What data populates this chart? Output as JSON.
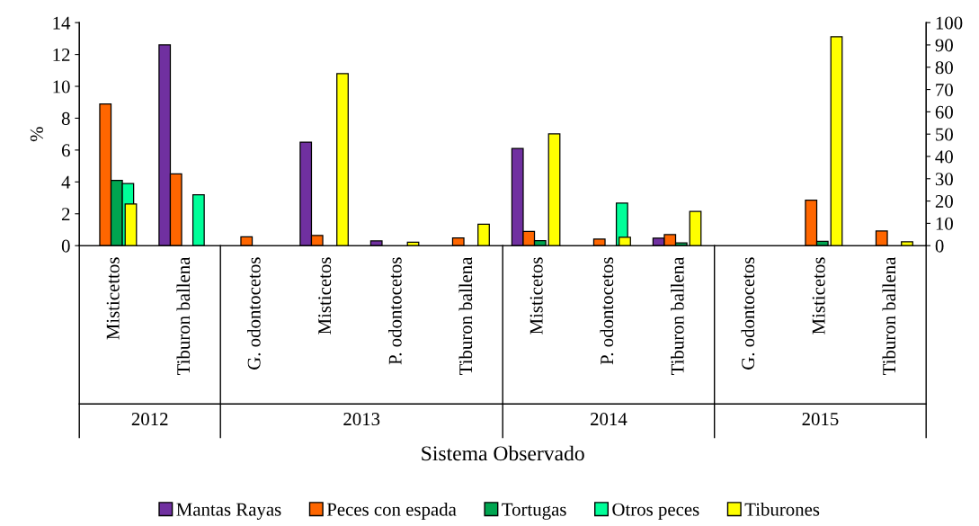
{
  "chart_data": {
    "type": "bar",
    "xlabel": "Sistema Observado",
    "ylabel": "%",
    "categories": [
      "Misticettos",
      "Tiburon ballena",
      "G. odontocetos",
      "Misticetos",
      "P. odontocetos",
      "Tiburon ballena",
      "Misticetos",
      "P. odontocetos",
      "Tiburon ballena",
      "G. odontocetos",
      "Misticetos",
      "Tiburon ballena"
    ],
    "annotations": [
      "2012",
      "2013",
      "2014",
      "2015"
    ],
    "series": [
      {
        "name": "Mantas Rayas",
        "color": "#7030a0",
        "values": [
          null,
          12.6,
          null,
          6.5,
          0.3,
          null,
          6.1,
          null,
          0.47,
          null,
          null,
          null
        ]
      },
      {
        "name": "Peces con espada",
        "color": "#ff6600",
        "values": [
          8.9,
          4.5,
          0.55,
          0.64,
          null,
          0.49,
          0.89,
          0.41,
          0.69,
          null,
          2.86,
          0.92
        ]
      },
      {
        "name": "Tortugas",
        "color": "#00a550",
        "values": [
          4.1,
          null,
          null,
          null,
          null,
          null,
          0.32,
          null,
          0.17,
          null,
          0.27,
          null
        ]
      },
      {
        "name": "Otros peces",
        "color": "#00ff99",
        "values": [
          3.9,
          3.2,
          null,
          null,
          null,
          null,
          null,
          2.67,
          null,
          null,
          null,
          null
        ]
      },
      {
        "name": "Tiburones",
        "color": "#ffff00",
        "axis": "y2",
        "values": [
          18.7,
          null,
          null,
          77.1,
          1.5,
          9.6,
          50.1,
          3.8,
          15.3,
          null,
          93.7,
          1.7
        ]
      }
    ],
    "ylim": [
      0,
      14
    ],
    "yticks": [
      0,
      2,
      4,
      6,
      8,
      10,
      12,
      14
    ],
    "y2lim": [
      0,
      100
    ],
    "y2ticks": [
      0,
      10,
      20,
      30,
      40,
      50,
      60,
      70,
      80,
      90,
      100
    ],
    "legend": "bottom",
    "grid": false
  }
}
